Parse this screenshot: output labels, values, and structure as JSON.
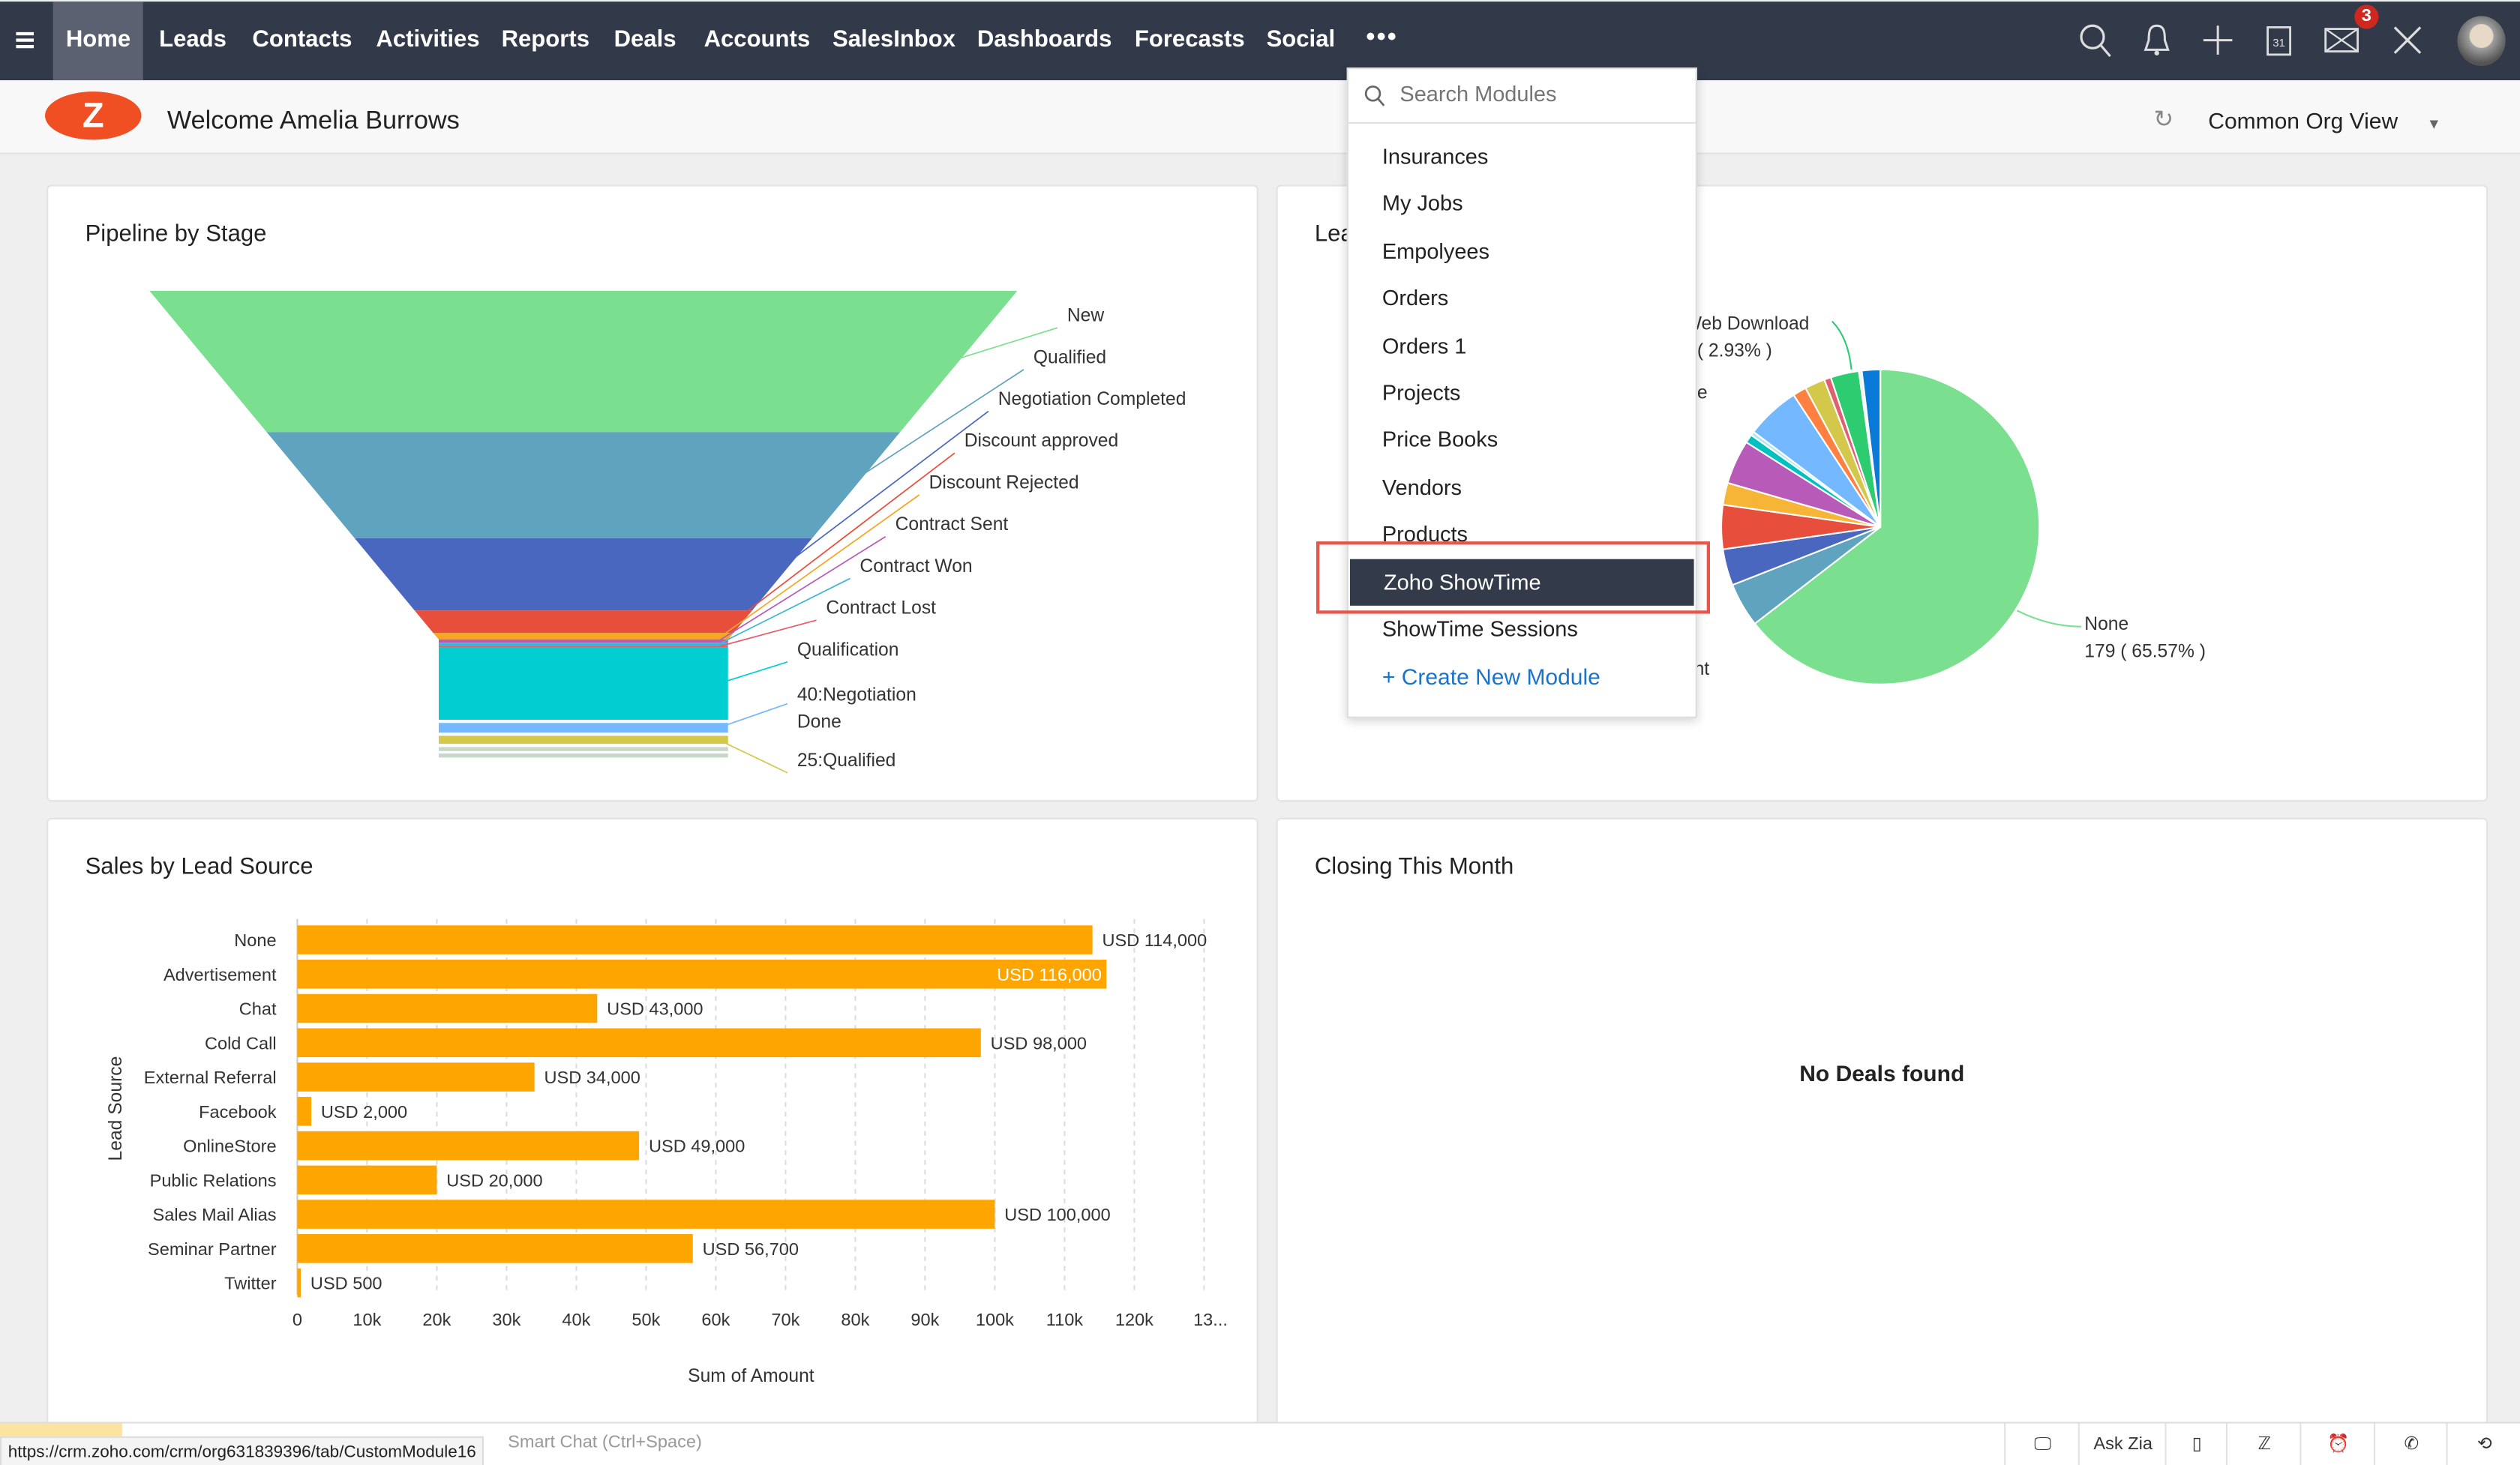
{
  "nav": {
    "items": [
      "Home",
      "Leads",
      "Contacts",
      "Activities",
      "Reports",
      "Deals",
      "Accounts",
      "SalesInbox",
      "Dashboards",
      "Forecasts",
      "Social"
    ],
    "active": "Home",
    "more_icon": "ellipsis-icon",
    "mail_badge": "3",
    "icons": [
      "search-icon",
      "bell-icon",
      "plus-icon",
      "calendar-icon",
      "mail-icon",
      "tools-icon",
      "avatar"
    ]
  },
  "header": {
    "logo": "Z",
    "welcome": "Welcome Amelia Burrows",
    "view": "Common Org View"
  },
  "dropdown": {
    "search_placeholder": "Search Modules",
    "items": [
      "Insurances",
      "My Jobs",
      "Empolyees",
      "Orders",
      "Orders 1",
      "Projects",
      "Price Books",
      "Vendors",
      "Products",
      "Zoho ShowTime",
      "ShowTime Sessions"
    ],
    "selected": "Zoho ShowTime",
    "create": "+ Create New Module"
  },
  "colors": {
    "nav": "#323a4a",
    "accent_bar": "#ffa500",
    "highlight_box": "#e5574b",
    "link": "#1a73c8"
  },
  "chart_data": [
    {
      "type": "funnel",
      "title": "Pipeline by Stage",
      "stages": [
        "New",
        "Qualified",
        "Negotiation Completed",
        "Discount approved",
        "Discount Rejected",
        "Contract Sent",
        "Contract Won",
        "Contract Lost",
        "Qualification",
        "40:Negotiation Done",
        "25:Qualified"
      ],
      "colors": [
        "#7ae08f",
        "#5fa3bf",
        "#4a67c0",
        "#e84e3c",
        "#f5a623",
        "#b85ab8",
        "#3bb8d6",
        "#e35d6a",
        "#00ced1",
        "#74b8ff",
        "#d4c84a"
      ]
    },
    {
      "type": "pie",
      "title": "Lea",
      "labels": [
        {
          "name": "None",
          "value_label": "179 ( 65.57% )"
        },
        {
          "name": "Web Download",
          "value_label": "( 2.93% )"
        },
        {
          "name": "e"
        },
        {
          "name": "nt"
        }
      ],
      "slices": [
        65.57,
        4.6,
        3.8,
        4.6,
        2.3,
        4.6,
        0.9,
        0.4,
        5.6,
        1.4,
        2.1,
        0.7,
        2.93,
        0.3,
        1.9
      ],
      "colors": [
        "#7ae08f",
        "#5fa3bf",
        "#4a67c0",
        "#e84e3c",
        "#f7b538",
        "#b85ab8",
        "#00c0c0",
        "#b0e8f0",
        "#74b8ff",
        "#ff8040",
        "#d4c84a",
        "#e06070",
        "#2ecc71",
        "#e8f4e8",
        "#0a7ad8"
      ]
    },
    {
      "type": "bar",
      "orientation": "horizontal",
      "title": "Sales by Lead Source",
      "xlabel": "Sum of Amount",
      "ylabel": "Lead Source",
      "categories": [
        "None",
        "Advertisement",
        "Chat",
        "Cold Call",
        "External Referral",
        "Facebook",
        "OnlineStore",
        "Public Relations",
        "Sales Mail Alias",
        "Seminar Partner",
        "Twitter"
      ],
      "values": [
        114000,
        116000,
        43000,
        98000,
        34000,
        2000,
        49000,
        20000,
        100000,
        56700,
        500
      ],
      "data_labels": [
        "USD 114,000",
        "USD 116,000",
        "USD 43,000",
        "USD 98,000",
        "USD 34,000",
        "USD 2,000",
        "USD 49,000",
        "USD 20,000",
        "USD 100,000",
        "USD 56,700",
        "USD 500"
      ],
      "xticks": [
        "0",
        "10k",
        "20k",
        "30k",
        "40k",
        "50k",
        "60k",
        "70k",
        "80k",
        "90k",
        "100k",
        "110k",
        "120k",
        "13..."
      ],
      "xlim": [
        0,
        130000
      ],
      "grid": true,
      "color": "#ffa500"
    }
  ],
  "closing": {
    "title": "Closing This Month",
    "empty": "No Deals found"
  },
  "bottom": {
    "url": "https://crm.zoho.com/crm/org631839396/tab/CustomModule16",
    "chat_hint": "Smart Chat (Ctrl+Space)",
    "ask_zia": "Ask Zia"
  }
}
